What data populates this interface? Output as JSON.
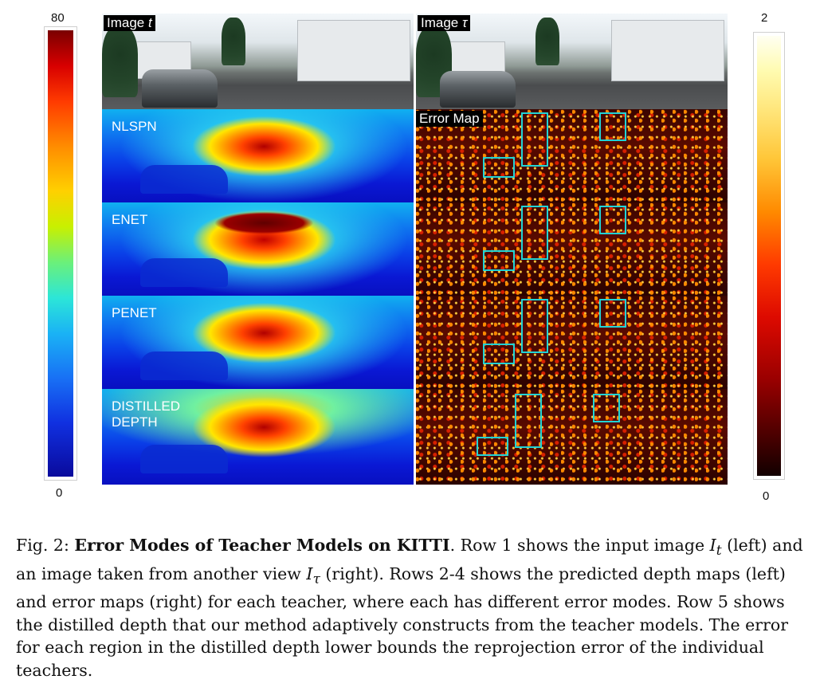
{
  "colorbars": {
    "left": {
      "max_label": "80",
      "min_label": "0"
    },
    "right": {
      "max_label": "2",
      "min_label": "0"
    }
  },
  "panels": {
    "image_t_label": "Image",
    "image_t_symbol": "t",
    "image_tau_label": "Image",
    "image_tau_symbol": "τ",
    "error_map_label": "Error Map",
    "rows": [
      {
        "method": "NLSPN"
      },
      {
        "method": "ENET"
      },
      {
        "method": "PENET"
      },
      {
        "method_line1": "DISTILLED",
        "method_line2": "DEPTH"
      }
    ]
  },
  "caption": {
    "prefix": "Fig. 2:",
    "title": "Error Modes of Teacher Models on KITTI",
    "body1": ". Row 1 shows the input image ",
    "I": "I",
    "sub_t": "t",
    "body2": " (left) and an image taken from another view ",
    "sub_tau": "τ",
    "body3": " (right). Rows 2-4 shows the predicted depth maps (left) and error maps (right) for each teacher, where each has different error modes. Row 5 shows the distilled depth that our method adaptively constructs from the teacher models. The error for each region in the distilled depth lower bounds the reprojection error of the individual teachers."
  }
}
